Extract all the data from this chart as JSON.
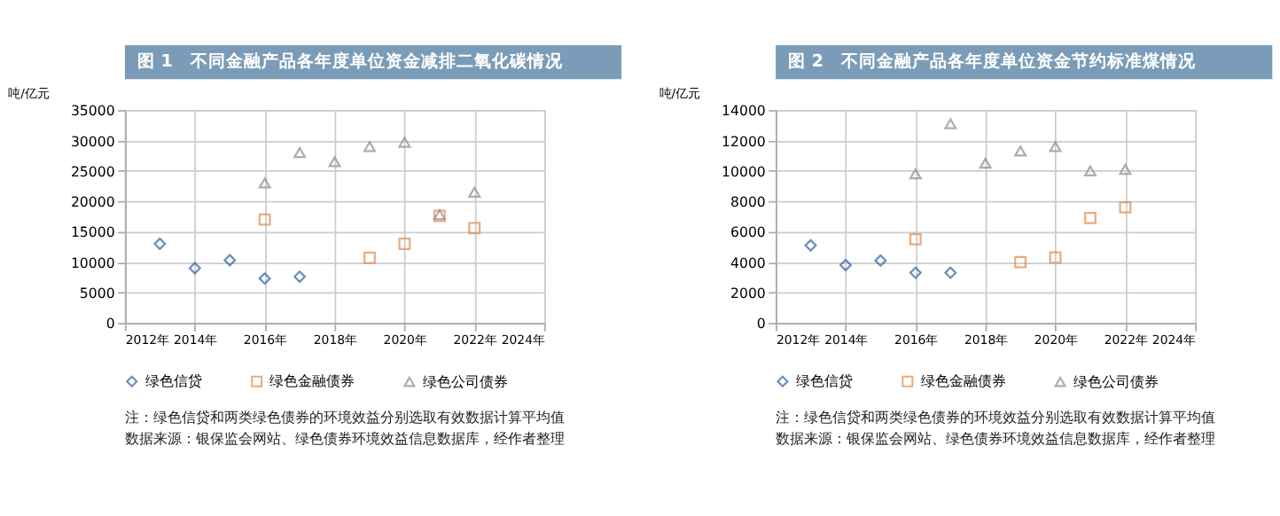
{
  "chart_data": [
    {
      "type": "scatter",
      "title": "图 1　不同金融产品各年度单位资金减排二氧化碳情况",
      "ylabel": "吨/亿元",
      "xlim": [
        2012,
        2024
      ],
      "xticks": [
        {
          "value": 2012,
          "label": "2012年"
        },
        {
          "value": 2014,
          "label": "2014年"
        },
        {
          "value": 2016,
          "label": "2016年"
        },
        {
          "value": 2018,
          "label": "2018年"
        },
        {
          "value": 2020,
          "label": "2020年"
        },
        {
          "value": 2022,
          "label": "2022年"
        },
        {
          "value": 2024,
          "label": "2024年"
        }
      ],
      "ylim": [
        0,
        35000
      ],
      "yticks": [
        0,
        5000,
        10000,
        15000,
        20000,
        25000,
        30000,
        35000
      ],
      "grid": true,
      "legend": "bottom",
      "series": [
        {
          "name": "绿色信贷",
          "color": "#2e5fa0",
          "marker": "diamond",
          "x": [
            2013,
            2014,
            2015,
            2016,
            2017
          ],
          "values": [
            13000,
            9000,
            10300,
            7300,
            7600
          ]
        },
        {
          "name": "绿色金融债券",
          "color": "#e08a4a",
          "marker": "square",
          "x": [
            2016,
            2019,
            2020,
            2021,
            2022
          ],
          "values": [
            17000,
            10700,
            13000,
            17600,
            15600
          ]
        },
        {
          "name": "绿色公司债券",
          "color": "#8c8c8c",
          "marker": "triangle",
          "x": [
            2016,
            2017,
            2018,
            2019,
            2020,
            2021,
            2022
          ],
          "values": [
            23000,
            28000,
            26500,
            29000,
            29700,
            17800,
            21500
          ]
        }
      ],
      "annotations": [
        "注：绿色信贷和两类绿色债券的环境效益分别选取有效数据计算平均值",
        "数据来源：银保监会网站、绿色债券环境效益信息数据库，经作者整理"
      ]
    },
    {
      "type": "scatter",
      "title": "图 2　不同金融产品各年度单位资金节约标准煤情况",
      "ylabel": "吨/亿元",
      "xlim": [
        2012,
        2024
      ],
      "xticks": [
        {
          "value": 2012,
          "label": "2012年"
        },
        {
          "value": 2014,
          "label": "2014年"
        },
        {
          "value": 2016,
          "label": "2016年"
        },
        {
          "value": 2018,
          "label": "2018年"
        },
        {
          "value": 2020,
          "label": "2020年"
        },
        {
          "value": 2022,
          "label": "2022年"
        },
        {
          "value": 2024,
          "label": "2024年"
        }
      ],
      "ylim": [
        0,
        14000
      ],
      "yticks": [
        0,
        2000,
        4000,
        6000,
        8000,
        10000,
        12000,
        14000
      ],
      "grid": true,
      "legend": "bottom",
      "series": [
        {
          "name": "绿色信贷",
          "color": "#2e5fa0",
          "marker": "diamond",
          "x": [
            2013,
            2014,
            2015,
            2016,
            2017
          ],
          "values": [
            5100,
            3800,
            4100,
            3300,
            3300
          ]
        },
        {
          "name": "绿色金融债券",
          "color": "#e08a4a",
          "marker": "square",
          "x": [
            2016,
            2019,
            2020,
            2021,
            2022
          ],
          "values": [
            5500,
            4000,
            4300,
            6900,
            7600
          ]
        },
        {
          "name": "绿色公司债券",
          "color": "#8c8c8c",
          "marker": "triangle",
          "x": [
            2016,
            2017,
            2018,
            2019,
            2020,
            2021,
            2022
          ],
          "values": [
            9800,
            13100,
            10500,
            11300,
            11600,
            10000,
            10100
          ]
        }
      ],
      "annotations": [
        "注：绿色信贷和两类绿色债券的环境效益分别选取有效数据计算平均值",
        "数据来源：银保监会网站、绿色债券环境效益信息数据库，经作者整理"
      ]
    }
  ]
}
